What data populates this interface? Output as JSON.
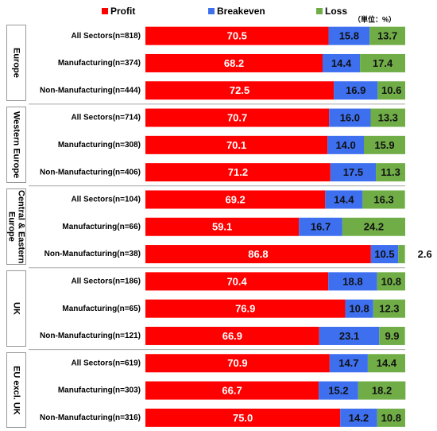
{
  "chart_data": {
    "type": "stacked-bar-horizontal",
    "unit": "（単位：%）",
    "groups": [
      "Europe",
      "Western Europe",
      "Central & Eastern Europe",
      "UK",
      "EU excl. UK"
    ],
    "categories": [
      "All Sectors(n=818)",
      "Manufacturing(n=374)",
      "Non-Manufacturing(n=444)",
      "All Sectors(n=714)",
      "Manufacturing(n=308)",
      "Non-Manufacturing(n=406)",
      "All Sectors(n=104)",
      "Manufacturing(n=66)",
      "Non-Manufacturing(n=38)",
      "All Sectors(n=186)",
      "Manufacturing(n=65)",
      "Non-Manufacturing(n=121)",
      "All Sectors(n=619)",
      "Manufacturing(n=303)",
      "Non-Manufacturing(n=316)"
    ],
    "xlim": [
      0,
      100
    ],
    "series": [
      {
        "name": "Profit",
        "color": "#ff0000",
        "label_color": "#ffffff",
        "values": [
          70.5,
          68.2,
          72.5,
          70.7,
          70.1,
          71.2,
          69.2,
          59.1,
          86.8,
          70.4,
          76.9,
          66.9,
          70.9,
          66.7,
          75
        ],
        "value_labels": [
          "70.5",
          "68.2",
          "72.5",
          "70.7",
          "70.1",
          "71.2",
          "69.2",
          "59.1",
          "86.8",
          "70.4",
          "76.9",
          "66.9",
          "70.9",
          "66.7",
          "75.0"
        ]
      },
      {
        "name": "Breakeven",
        "color": "#3d6fef",
        "label_color": "#111111",
        "values": [
          15.8,
          14.4,
          16.9,
          16.0,
          14.0,
          17.5,
          14.4,
          16.7,
          10.5,
          18.8,
          10.8,
          23.1,
          14.7,
          15.2,
          14.2
        ],
        "value_labels": [
          "15.8",
          "14.4",
          "16.9",
          "16.0",
          "14.0",
          "17.5",
          "14.4",
          "16.7",
          "10.5",
          "18.8",
          "10.8",
          "23.1",
          "14.7",
          "15.2",
          "14.2"
        ]
      },
      {
        "name": "Loss",
        "color": "#70ad47",
        "label_color": "#111111",
        "values": [
          13.7,
          17.4,
          10.6,
          13.3,
          15.9,
          11.3,
          16.3,
          24.2,
          2.6,
          10.8,
          12.3,
          9.9,
          14.4,
          18.2,
          10.8
        ]
      }
    ]
  }
}
